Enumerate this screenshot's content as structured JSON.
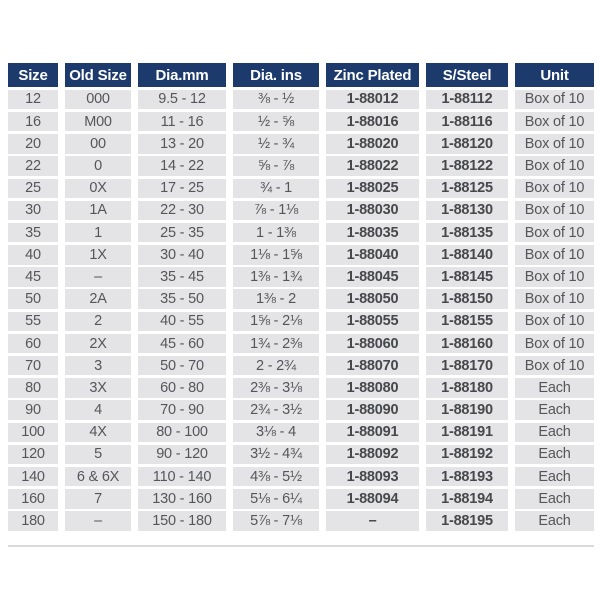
{
  "colors": {
    "header_bg": "#1c3a6b",
    "header_text": "#ffffff",
    "row_bg": "#e4e4e6",
    "cell_text": "#55565a",
    "part_number_text": "#47484c",
    "page_bg": "#ffffff"
  },
  "table": {
    "headers": [
      "Size",
      "Old Size",
      "Dia.mm",
      "Dia. ins",
      "Zinc Plated",
      "S/Steel",
      "Unit"
    ],
    "rows": [
      [
        "12",
        "000",
        "9.5 - 12",
        "⅜ - ½",
        "1-88012",
        "1-88112",
        "Box of 10"
      ],
      [
        "16",
        "M00",
        "11 - 16",
        "½ - ⅝",
        "1-88016",
        "1-88116",
        "Box of 10"
      ],
      [
        "20",
        "00",
        "13 - 20",
        "½ - ¾",
        "1-88020",
        "1-88120",
        "Box of 10"
      ],
      [
        "22",
        "0",
        "14 - 22",
        "⅝ - ⅞",
        "1-88022",
        "1-88122",
        "Box of 10"
      ],
      [
        "25",
        "0X",
        "17 - 25",
        "¾ - 1",
        "1-88025",
        "1-88125",
        "Box of 10"
      ],
      [
        "30",
        "1A",
        "22 - 30",
        "⅞ - 1⅛",
        "1-88030",
        "1-88130",
        "Box of 10"
      ],
      [
        "35",
        "1",
        "25 - 35",
        "1 - 1⅜",
        "1-88035",
        "1-88135",
        "Box of 10"
      ],
      [
        "40",
        "1X",
        "30 - 40",
        "1⅛ - 1⅝",
        "1-88040",
        "1-88140",
        "Box of 10"
      ],
      [
        "45",
        "–",
        "35 - 45",
        "1⅜ - 1¾",
        "1-88045",
        "1-88145",
        "Box of 10"
      ],
      [
        "50",
        "2A",
        "35 - 50",
        "1⅜ - 2",
        "1-88050",
        "1-88150",
        "Box of 10"
      ],
      [
        "55",
        "2",
        "40 - 55",
        "1⅝ - 2⅛",
        "1-88055",
        "1-88155",
        "Box of 10"
      ],
      [
        "60",
        "2X",
        "45 - 60",
        "1¾ - 2⅜",
        "1-88060",
        "1-88160",
        "Box of 10"
      ],
      [
        "70",
        "3",
        "50 - 70",
        "2 - 2¾",
        "1-88070",
        "1-88170",
        "Box of 10"
      ],
      [
        "80",
        "3X",
        "60 - 80",
        "2⅜ - 3⅛",
        "1-88080",
        "1-88180",
        "Each"
      ],
      [
        "90",
        "4",
        "70 - 90",
        "2¾ - 3½",
        "1-88090",
        "1-88190",
        "Each"
      ],
      [
        "100",
        "4X",
        "80 - 100",
        "3⅛ - 4",
        "1-88091",
        "1-88191",
        "Each"
      ],
      [
        "120",
        "5",
        "90 - 120",
        "3½ - 4¾",
        "1-88092",
        "1-88192",
        "Each"
      ],
      [
        "140",
        "6 & 6X",
        "110 - 140",
        "4⅜ - 5½",
        "1-88093",
        "1-88193",
        "Each"
      ],
      [
        "160",
        "7",
        "130 - 160",
        "5⅛ - 6¼",
        "1-88094",
        "1-88194",
        "Each"
      ],
      [
        "180",
        "–",
        "150 - 180",
        "5⅞ - 7⅛",
        "–",
        "1-88195",
        "Each"
      ]
    ],
    "column_keys": [
      "size",
      "old-size",
      "dia-mm",
      "dia-ins",
      "zinc-plated",
      "s-steel",
      "unit"
    ]
  }
}
